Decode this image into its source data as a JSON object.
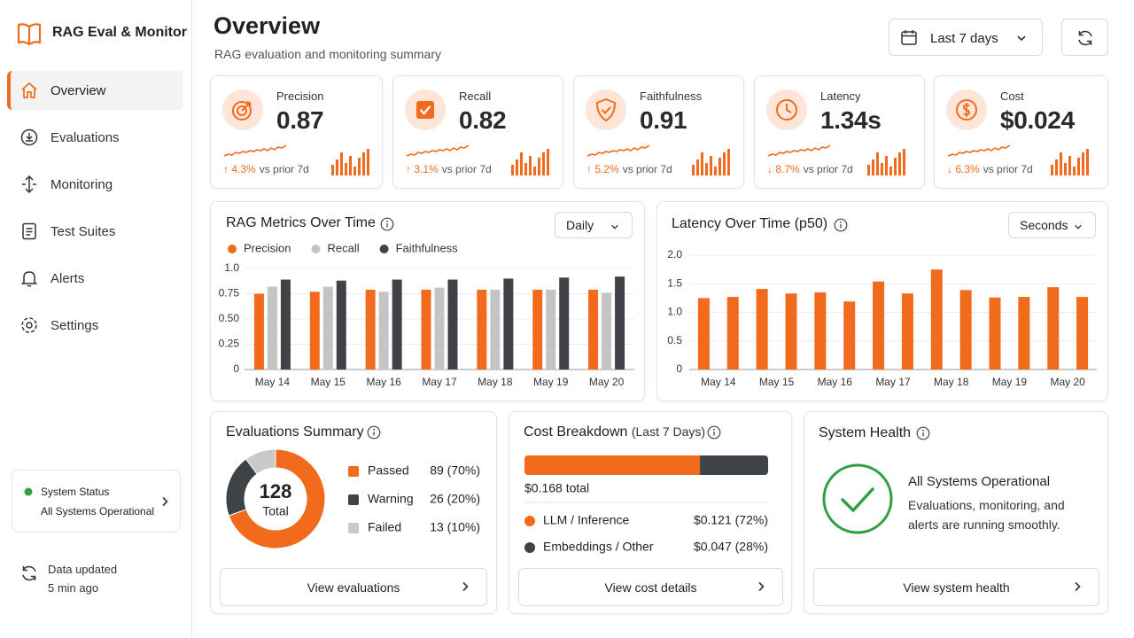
{
  "sidebar": {
    "brand": "RAG Eval & Monitor",
    "nav": [
      "Overview",
      "Evaluations",
      "Monitoring",
      "Test Suites",
      "Alerts",
      "Settings"
    ],
    "status": {
      "title": "System Status",
      "text": "All Systems Operational"
    },
    "updated": {
      "label": "Data updated",
      "time": "5 min ago"
    }
  },
  "header": {
    "title": "Overview",
    "subtitle": "RAG evaluation and monitoring summary",
    "range": "Last 7 days"
  },
  "kpis": [
    {
      "label": "Precision",
      "value": "0.87",
      "delta": "↑ 4.3%",
      "compare": "vs prior 7d"
    },
    {
      "label": "Recall",
      "value": "0.82",
      "delta": "↑ 3.1%",
      "compare": "vs prior 7d"
    },
    {
      "label": "Faithfulness",
      "value": "0.91",
      "delta": "↑ 5.2%",
      "compare": "vs prior 7d"
    },
    {
      "label": "Latency",
      "value": "1.34s",
      "delta": "↓ 8.7%",
      "compare": "vs prior 7d"
    },
    {
      "label": "Cost",
      "value": "$0.024",
      "delta": "↓ 6.3%",
      "compare": "vs prior 7d"
    }
  ],
  "chart_data": [
    {
      "type": "bar",
      "title": "RAG Metrics Over Time",
      "dropdown": "Daily",
      "categories": [
        "May 14",
        "May 15",
        "May 16",
        "May 17",
        "May 18",
        "May 19",
        "May 20"
      ],
      "series": [
        {
          "name": "Precision",
          "color": "#f26a1b",
          "values": [
            0.75,
            0.77,
            0.79,
            0.79,
            0.79,
            0.79,
            0.79
          ]
        },
        {
          "name": "Recall",
          "color": "#c4c4c4",
          "values": [
            0.82,
            0.82,
            0.77,
            0.81,
            0.79,
            0.79,
            0.76
          ]
        },
        {
          "name": "Faithfulness",
          "color": "#3f4347",
          "values": [
            0.89,
            0.88,
            0.89,
            0.89,
            0.9,
            0.91,
            0.92
          ]
        }
      ],
      "ylim": [
        0,
        1
      ],
      "yticks": [
        0,
        0.25,
        {
          "value": 0.5,
          "label": "0.50"
        },
        0.75,
        {
          "value": 1,
          "label": "1.0"
        }
      ],
      "grid": true
    },
    {
      "type": "bar",
      "title": "Latency Over Time (p50)",
      "dropdown": "Seconds",
      "categories": [
        "May 14",
        null,
        "May 15",
        null,
        "May 16",
        null,
        "May 17",
        null,
        "May 18",
        null,
        "May 19",
        null,
        "May 20",
        null
      ],
      "values": [
        1.25,
        1.27,
        1.41,
        1.33,
        1.35,
        1.19,
        1.54,
        1.33,
        1.75,
        1.39,
        1.26,
        1.27,
        1.44,
        1.27
      ],
      "color": "#f26a1b",
      "ylim": [
        0,
        2
      ],
      "yticks": [
        0,
        0.5,
        {
          "value": 1,
          "label": "1.0"
        },
        1.5,
        {
          "value": 2,
          "label": "2.0"
        }
      ],
      "grid": true
    },
    {
      "type": "donut",
      "title": "Evaluations Summary",
      "center_value": 128,
      "center_label": "Total",
      "categories": [
        "Passed",
        "Warning",
        "Failed"
      ],
      "values": [
        89,
        26,
        13
      ],
      "value_labels": [
        "89 (70%)",
        "26 (20%)",
        "13 (10%)"
      ],
      "colors": [
        "#f26a1b",
        "#3f4347",
        "#c9c9c9"
      ],
      "action": "View evaluations"
    },
    {
      "type": "stacked-bar",
      "title": "Cost Breakdown",
      "subtitle": "(Last 7 Days)",
      "total_label": "$0.168 total",
      "categories": [
        "LLM / Inference",
        "Embeddings / Other"
      ],
      "values": [
        0.121,
        0.047
      ],
      "value_labels": [
        "$0.121 (72%)",
        "$0.047 (28%)"
      ],
      "colors": [
        "#f26a1b",
        "#3f4347"
      ],
      "action": "View cost details"
    }
  ],
  "health": {
    "title": "System Health",
    "status": "All Systems Operational",
    "description": "Evaluations, monitoring, and alerts are running smoothly.",
    "action": "View system health"
  }
}
